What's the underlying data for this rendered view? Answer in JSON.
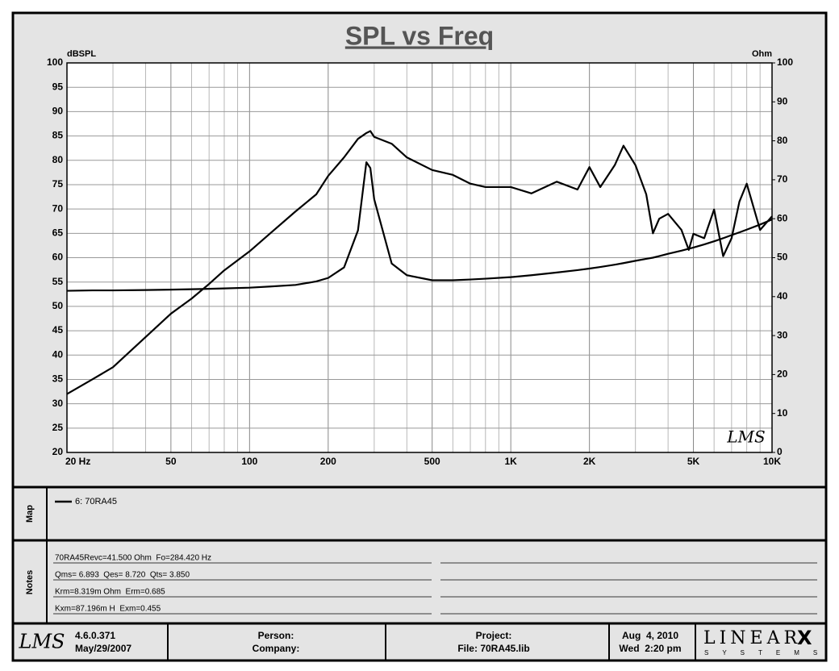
{
  "chart_data": {
    "type": "line",
    "title": "SPL vs Freq",
    "ylabel": "dBSPL",
    "y2label": "Ohm",
    "watermark": "LMS",
    "xscale": "log",
    "xlim": [
      20,
      10000
    ],
    "xticks": [
      {
        "value": 20,
        "label": "20 Hz"
      },
      50,
      100,
      200,
      500,
      {
        "value": 1000,
        "label": "1K"
      },
      {
        "value": 2000,
        "label": "2K"
      },
      {
        "value": 5000,
        "label": "5K"
      },
      {
        "value": 10000,
        "label": "10K"
      }
    ],
    "xgrid_minor": [
      30,
      40,
      60,
      70,
      80,
      90,
      300,
      400,
      600,
      700,
      800,
      900,
      3000,
      4000,
      6000,
      7000,
      8000,
      9000
    ],
    "ylim": [
      20,
      100
    ],
    "yticks": [
      20,
      25,
      30,
      35,
      40,
      45,
      50,
      55,
      60,
      65,
      70,
      75,
      80,
      85,
      90,
      95,
      100
    ],
    "y2lim": [
      0,
      100
    ],
    "y2ticks": [
      0,
      10,
      20,
      30,
      40,
      50,
      60,
      70,
      80,
      90,
      100
    ],
    "grid": true,
    "x": [
      20,
      25,
      30,
      40,
      50,
      60,
      70,
      80,
      100,
      120,
      150,
      180,
      200,
      230,
      260,
      280,
      290,
      300,
      350,
      400,
      500,
      600,
      700,
      800,
      1000,
      1200,
      1500,
      1800,
      2000,
      2200,
      2500,
      2700,
      3000,
      3300,
      3500,
      3700,
      4000,
      4500,
      4800,
      5000,
      5500,
      6000,
      6500,
      7000,
      7500,
      8000,
      9000,
      10000
    ],
    "series": [
      {
        "name": "6: 70RA45",
        "color": "#000000",
        "values": [
          32,
          35,
          37.5,
          43.7,
          48.5,
          51.6,
          54.6,
          57.4,
          61.3,
          65,
          69.5,
          73,
          76.8,
          80.6,
          84.4,
          85.6,
          86,
          84.8,
          83.4,
          80.6,
          78,
          77,
          75.2,
          74.5,
          74.5,
          73.2,
          75.6,
          74,
          78.6,
          74.5,
          79,
          83,
          79,
          73,
          65,
          68,
          69,
          65.7,
          61.6,
          64.9,
          64,
          69.9,
          60.3,
          64,
          71.5,
          75.2,
          65.7,
          68.5
        ]
      },
      {
        "axis": "y2",
        "color": "#000000",
        "values": [
          41.5,
          41.6,
          41.6,
          41.7,
          41.8,
          41.9,
          42,
          42.1,
          42.3,
          42.6,
          43,
          43.9,
          44.8,
          47.5,
          57,
          74.5,
          73,
          65,
          48.5,
          45.5,
          44.2,
          44.2,
          44.4,
          44.6,
          45,
          45.5,
          46.2,
          46.8,
          47.2,
          47.6,
          48.2,
          48.6,
          49.2,
          49.7,
          50,
          50.4,
          51,
          51.8,
          52.3,
          52.6,
          53.4,
          54.2,
          55,
          55.8,
          56.5,
          57.2,
          58.5,
          59.8
        ]
      }
    ]
  },
  "map": {
    "label": "Map"
  },
  "notes": {
    "label": "Notes",
    "lines": [
      "70RA45Revc=41.500 Ohm  Fo=284.420 Hz",
      "Qms= 6.893  Qes= 8.720  Qts= 3.850",
      "Krm=8.319m Ohm  Erm=0.685",
      "Kxm=87.196m H  Exm=0.455"
    ]
  },
  "footer": {
    "logo": "LMS",
    "version": "4.6.0.371",
    "version_date": "May/29/2007",
    "person": "Person:",
    "company": "Company:",
    "project": "Project:",
    "file": "File: 70RA45.lib",
    "date": "Aug  4, 2010",
    "time": "Wed  2:20 pm",
    "brand": "LINEAR",
    "brand_mark": "X",
    "brand_sub": "SYSTEMS"
  }
}
